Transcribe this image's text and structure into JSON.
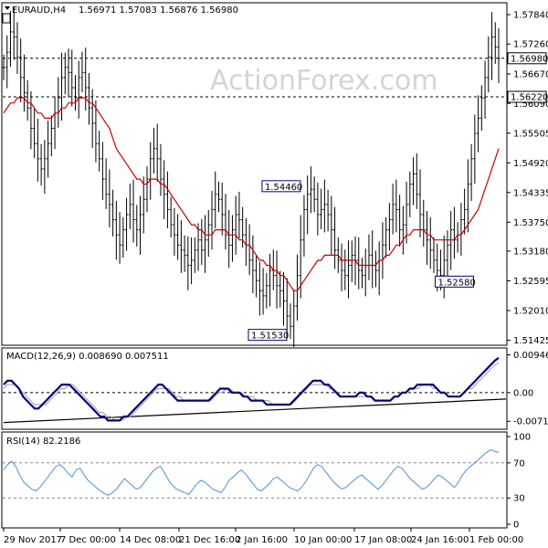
{
  "chart_data": {
    "type": "candlestick",
    "symbol_header": "EURAUD,H4",
    "ohlc_header": "1.56971 1.57083 1.56876 1.56980",
    "watermark": "ActionForex.com",
    "colors": {
      "candle": "#000000",
      "ma": "#cc0000",
      "macd": "#00007f",
      "signal": "#9a9a9a",
      "rsi": "#4a90d9",
      "trend": "#000000",
      "grid_dash": "#000000"
    },
    "x_ticks": [
      "29 Nov 2017",
      "7 Dec 00:00",
      "14 Dec 08:00",
      "21 Dec 16:00",
      "2 Jan 16:00",
      "10 Jan 00:00",
      "17 Jan 08:00",
      "24 Jan 16:00",
      "1 Feb 00:00"
    ],
    "price": {
      "ylim": [
        1.5138,
        1.5802
      ],
      "y_ticks": [
        "1.57840",
        "1.57260",
        "1.56670",
        "1.56090",
        "1.55505",
        "1.54920",
        "1.54335",
        "1.53750",
        "1.53180",
        "1.52595",
        "1.52010",
        "1.51425"
      ],
      "hlines": [
        {
          "value": 1.5698,
          "label": "1.56980"
        },
        {
          "value": 1.5622,
          "label": "1.56220"
        }
      ],
      "annotations": [
        {
          "label": "1.54460",
          "value": 1.5446,
          "bar": 88
        },
        {
          "label": "1.52580",
          "value": 1.5258,
          "bar": 128
        },
        {
          "label": "1.51530",
          "value": 1.5153,
          "bar": 84
        }
      ],
      "close": [
        1.568,
        1.571,
        1.575,
        1.574,
        1.57,
        1.566,
        1.563,
        1.56,
        1.556,
        1.553,
        1.55,
        1.548,
        1.55,
        1.553,
        1.556,
        1.559,
        1.562,
        1.566,
        1.568,
        1.567,
        1.564,
        1.562,
        1.566,
        1.567,
        1.564,
        1.56,
        1.557,
        1.553,
        1.55,
        1.546,
        1.543,
        1.541,
        1.538,
        1.535,
        1.533,
        1.536,
        1.539,
        1.541,
        1.538,
        1.536,
        1.539,
        1.542,
        1.546,
        1.55,
        1.552,
        1.55,
        1.546,
        1.543,
        1.54,
        1.537,
        1.535,
        1.533,
        1.532,
        1.531,
        1.529,
        1.53,
        1.532,
        1.534,
        1.532,
        1.534,
        1.537,
        1.54,
        1.543,
        1.542,
        1.539,
        1.535,
        1.533,
        1.536,
        1.539,
        1.538,
        1.535,
        1.533,
        1.53,
        1.528,
        1.526,
        1.524,
        1.523,
        1.525,
        1.528,
        1.527,
        1.525,
        1.524,
        1.522,
        1.519,
        1.517,
        1.521,
        1.527,
        1.534,
        1.54,
        1.543,
        1.544,
        1.542,
        1.539,
        1.54,
        1.541,
        1.539,
        1.536,
        1.532,
        1.53,
        1.528,
        1.527,
        1.529,
        1.531,
        1.53,
        1.528,
        1.527,
        1.529,
        1.531,
        1.529,
        1.528,
        1.53,
        1.533,
        1.536,
        1.538,
        1.541,
        1.54,
        1.536,
        1.537,
        1.541,
        1.545,
        1.547,
        1.543,
        1.539,
        1.536,
        1.534,
        1.532,
        1.53,
        1.528,
        1.527,
        1.53,
        1.533,
        1.536,
        1.534,
        1.535,
        1.538,
        1.54,
        1.545,
        1.55,
        1.555,
        1.558,
        1.562,
        1.566,
        1.57,
        1.574,
        1.572,
        1.5698
      ],
      "ma": [
        1.559,
        1.56,
        1.561,
        1.561,
        1.562,
        1.562,
        1.562,
        1.561,
        1.561,
        1.56,
        1.559,
        1.559,
        1.558,
        1.558,
        1.558,
        1.559,
        1.559,
        1.56,
        1.56,
        1.561,
        1.561,
        1.561,
        1.562,
        1.562,
        1.562,
        1.561,
        1.561,
        1.56,
        1.559,
        1.558,
        1.557,
        1.556,
        1.554,
        1.552,
        1.551,
        1.55,
        1.549,
        1.548,
        1.547,
        1.546,
        1.546,
        1.545,
        1.545,
        1.546,
        1.546,
        1.546,
        1.545,
        1.545,
        1.544,
        1.543,
        1.542,
        1.541,
        1.54,
        1.539,
        1.538,
        1.537,
        1.537,
        1.536,
        1.536,
        1.535,
        1.535,
        1.535,
        1.536,
        1.536,
        1.536,
        1.536,
        1.535,
        1.535,
        1.535,
        1.534,
        1.534,
        1.533,
        1.533,
        1.532,
        1.531,
        1.53,
        1.53,
        1.529,
        1.529,
        1.528,
        1.528,
        1.527,
        1.527,
        1.526,
        1.525,
        1.524,
        1.524,
        1.525,
        1.526,
        1.527,
        1.528,
        1.529,
        1.53,
        1.53,
        1.531,
        1.531,
        1.531,
        1.531,
        1.531,
        1.53,
        1.53,
        1.53,
        1.53,
        1.53,
        1.529,
        1.529,
        1.529,
        1.529,
        1.529,
        1.529,
        1.53,
        1.53,
        1.531,
        1.531,
        1.532,
        1.533,
        1.533,
        1.534,
        1.535,
        1.535,
        1.536,
        1.536,
        1.536,
        1.536,
        1.535,
        1.535,
        1.534,
        1.534,
        1.534,
        1.534,
        1.534,
        1.534,
        1.534,
        1.535,
        1.535,
        1.536,
        1.537,
        1.538,
        1.539,
        1.54,
        1.542,
        1.544,
        1.546,
        1.548,
        1.55,
        1.552
      ]
    },
    "macd": {
      "header": "MACD(12,26,9) 0.008690 0.007511",
      "ylim": [
        -0.0085,
        0.0105
      ],
      "y_ticks": [
        "0.009466",
        "0.00",
        "-0.007178"
      ],
      "macd": [
        0.002,
        0.003,
        0.003,
        0.002,
        0.001,
        -0.001,
        -0.002,
        -0.003,
        -0.004,
        -0.004,
        -0.003,
        -0.002,
        -0.001,
        0.0,
        0.001,
        0.002,
        0.002,
        0.002,
        0.001,
        0.0,
        -0.001,
        -0.002,
        -0.003,
        -0.004,
        -0.005,
        -0.006,
        -0.006,
        -0.007,
        -0.007,
        -0.007,
        -0.007,
        -0.006,
        -0.006,
        -0.005,
        -0.004,
        -0.003,
        -0.002,
        -0.001,
        0.0,
        0.001,
        0.002,
        0.002,
        0.001,
        0.0,
        -0.001,
        -0.002,
        -0.002,
        -0.002,
        -0.002,
        -0.002,
        -0.002,
        -0.002,
        -0.002,
        -0.002,
        -0.001,
        0.0,
        0.001,
        0.001,
        0.001,
        0.0,
        0.0,
        0.0,
        -0.001,
        -0.001,
        -0.002,
        -0.002,
        -0.002,
        -0.002,
        -0.003,
        -0.003,
        -0.003,
        -0.003,
        -0.003,
        -0.003,
        -0.003,
        -0.002,
        -0.001,
        0.0,
        0.001,
        0.002,
        0.003,
        0.003,
        0.003,
        0.002,
        0.002,
        0.001,
        0.0,
        -0.001,
        -0.001,
        -0.001,
        -0.001,
        -0.001,
        0.0,
        0.0,
        -0.001,
        -0.001,
        -0.002,
        -0.002,
        -0.002,
        -0.002,
        -0.002,
        -0.001,
        -0.001,
        0.0,
        0.0,
        0.001,
        0.001,
        0.002,
        0.002,
        0.002,
        0.002,
        0.002,
        0.001,
        0.0,
        0.0,
        -0.001,
        -0.001,
        -0.001,
        -0.001,
        0.0,
        0.001,
        0.002,
        0.003,
        0.004,
        0.005,
        0.006,
        0.007,
        0.008,
        0.0087
      ],
      "signal": [
        0.001,
        0.002,
        0.002,
        0.002,
        0.001,
        0.0,
        -0.001,
        -0.002,
        -0.003,
        -0.003,
        -0.003,
        -0.003,
        -0.002,
        -0.001,
        0.0,
        0.001,
        0.001,
        0.002,
        0.002,
        0.001,
        0.0,
        -0.001,
        -0.002,
        -0.003,
        -0.004,
        -0.005,
        -0.005,
        -0.006,
        -0.006,
        -0.007,
        -0.007,
        -0.007,
        -0.006,
        -0.006,
        -0.005,
        -0.004,
        -0.003,
        -0.002,
        -0.001,
        0.0,
        0.001,
        0.001,
        0.001,
        0.001,
        0.0,
        -0.001,
        -0.001,
        -0.002,
        -0.002,
        -0.002,
        -0.002,
        -0.002,
        -0.002,
        -0.002,
        -0.002,
        -0.001,
        0.0,
        0.0,
        0.001,
        0.001,
        0.0,
        0.0,
        0.0,
        -0.001,
        -0.001,
        -0.001,
        -0.002,
        -0.002,
        -0.002,
        -0.002,
        -0.003,
        -0.003,
        -0.003,
        -0.003,
        -0.003,
        -0.003,
        -0.002,
        -0.001,
        0.0,
        0.001,
        0.002,
        0.002,
        0.002,
        0.002,
        0.002,
        0.001,
        0.001,
        0.0,
        -0.001,
        -0.001,
        -0.001,
        -0.001,
        -0.001,
        -0.001,
        -0.001,
        -0.001,
        -0.001,
        -0.002,
        -0.002,
        -0.002,
        -0.002,
        -0.002,
        -0.001,
        -0.001,
        0.0,
        0.0,
        0.001,
        0.001,
        0.001,
        0.002,
        0.002,
        0.002,
        0.001,
        0.001,
        0.0,
        0.0,
        -0.001,
        -0.001,
        -0.001,
        -0.001,
        0.0,
        0.001,
        0.001,
        0.002,
        0.003,
        0.004,
        0.005,
        0.006,
        0.007,
        0.0075
      ],
      "trendline": [
        [
          0,
          -0.0075
        ],
        [
          125,
          -0.0016
        ]
      ]
    },
    "rsi": {
      "header": "RSI(14) 82.2186",
      "ylim": [
        0,
        100
      ],
      "y_ticks": [
        "100",
        "70",
        "30",
        "0"
      ],
      "levels": [
        70,
        30
      ],
      "values": [
        62,
        68,
        72,
        66,
        56,
        48,
        44,
        40,
        38,
        42,
        48,
        54,
        60,
        66,
        68,
        64,
        58,
        54,
        62,
        64,
        56,
        50,
        46,
        42,
        38,
        35,
        33,
        36,
        40,
        46,
        52,
        48,
        44,
        40,
        42,
        48,
        54,
        60,
        64,
        66,
        58,
        50,
        44,
        40,
        38,
        36,
        34,
        40,
        46,
        50,
        48,
        44,
        40,
        38,
        36,
        42,
        50,
        54,
        58,
        62,
        58,
        52,
        46,
        40,
        38,
        42,
        46,
        52,
        54,
        50,
        46,
        42,
        40,
        38,
        42,
        48,
        56,
        64,
        68,
        66,
        60,
        54,
        48,
        44,
        40,
        42,
        46,
        50,
        54,
        56,
        52,
        48,
        44,
        40,
        44,
        50,
        56,
        62,
        66,
        64,
        58,
        52,
        48,
        44,
        40,
        42,
        46,
        52,
        56,
        54,
        50,
        46,
        42,
        48,
        56,
        62,
        66,
        70,
        74,
        78,
        82,
        85,
        83,
        82.2
      ]
    }
  }
}
